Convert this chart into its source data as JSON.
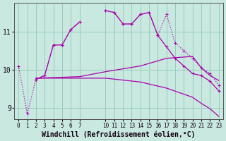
{
  "background_color": "#c8e8e0",
  "grid_color": "#99ccbb",
  "line_color": "#aa00aa",
  "xlabel": "Windchill (Refroidissement éolien,°C)",
  "xlabel_fontsize": 7,
  "ytick_positions": [
    9,
    10,
    11
  ],
  "xlim": [
    -0.5,
    23.5
  ],
  "ylim": [
    8.7,
    11.75
  ],
  "figsize": [
    3.2,
    2.0
  ],
  "dpi": 100,
  "lines": [
    {
      "segments": [
        {
          "x": [
            0,
            1,
            2,
            3,
            4,
            5,
            6,
            7
          ],
          "y": [
            10.1,
            8.85,
            9.75,
            9.85,
            10.65,
            10.65,
            11.05,
            11.25
          ]
        },
        {
          "x": [
            10,
            11,
            12,
            13,
            14,
            15,
            16,
            17,
            18,
            19,
            20,
            21,
            22,
            23
          ],
          "y": [
            11.55,
            11.5,
            11.2,
            11.2,
            11.45,
            11.5,
            10.9,
            11.45,
            10.7,
            10.5,
            10.3,
            10.05,
            9.9,
            9.6
          ]
        }
      ],
      "linestyle": ":",
      "marker": "+"
    },
    {
      "segments": [
        {
          "x": [
            2,
            3,
            4,
            5,
            6,
            7
          ],
          "y": [
            9.75,
            9.85,
            10.65,
            10.65,
            11.05,
            11.25
          ]
        },
        {
          "x": [
            10,
            11,
            12,
            13,
            14,
            15,
            16,
            17,
            18,
            19,
            20,
            21,
            22,
            23
          ],
          "y": [
            11.55,
            11.5,
            11.2,
            11.2,
            11.45,
            11.5,
            10.9,
            10.6,
            10.3,
            10.1,
            9.9,
            9.85,
            9.7,
            9.45
          ]
        }
      ],
      "linestyle": "-",
      "marker": "+"
    },
    {
      "segments": [
        {
          "x": [
            2,
            7,
            10,
            14,
            17,
            20,
            21,
            22,
            23
          ],
          "y": [
            9.78,
            9.82,
            9.95,
            10.1,
            10.3,
            10.35,
            10.05,
            9.85,
            9.72
          ]
        }
      ],
      "linestyle": "-",
      "marker": null
    },
    {
      "segments": [
        {
          "x": [
            2,
            7,
            10,
            14,
            17,
            20,
            21,
            22,
            23
          ],
          "y": [
            9.78,
            9.78,
            9.78,
            9.68,
            9.52,
            9.28,
            9.12,
            8.98,
            8.78
          ]
        }
      ],
      "linestyle": "-",
      "marker": null
    }
  ]
}
